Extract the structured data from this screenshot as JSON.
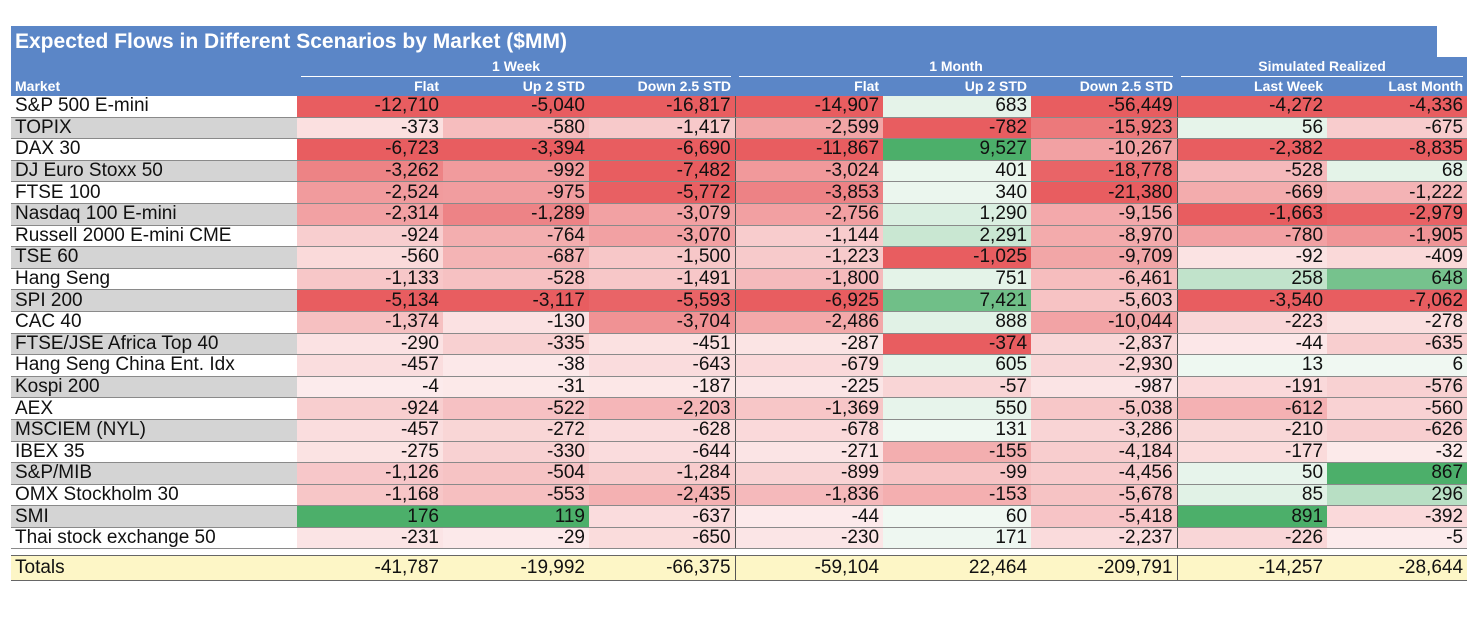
{
  "chart_data": {
    "type": "table",
    "title": "Expected Flows in Different Scenarios by Market ($MM)",
    "column_groups": [
      {
        "label": "1 Week",
        "span": 3
      },
      {
        "label": "1 Month",
        "span": 3
      },
      {
        "label": "Simulated Realized",
        "span": 2
      }
    ],
    "row_header": "Market",
    "columns": [
      "Flat",
      "Up 2 STD",
      "Down 2.5 STD",
      "Flat",
      "Up 2 STD",
      "Down 2.5 STD",
      "Last Week",
      "Last Month"
    ],
    "rows": [
      {
        "market": "S&P 500 E-mini",
        "shaded": false,
        "values": [
          -12710,
          -5040,
          -16817,
          -14907,
          683,
          -56449,
          -4272,
          -4336
        ]
      },
      {
        "market": "TOPIX",
        "shaded": true,
        "values": [
          -373,
          -580,
          -1417,
          -2599,
          -782,
          -15923,
          56,
          -675
        ]
      },
      {
        "market": "DAX 30",
        "shaded": false,
        "values": [
          -6723,
          -3394,
          -6690,
          -11867,
          9527,
          -10267,
          -2382,
          -8835
        ]
      },
      {
        "market": "DJ Euro Stoxx 50",
        "shaded": true,
        "values": [
          -3262,
          -992,
          -7482,
          -3024,
          401,
          -18778,
          -528,
          68
        ]
      },
      {
        "market": "FTSE 100",
        "shaded": false,
        "values": [
          -2524,
          -975,
          -5772,
          -3853,
          340,
          -21380,
          -669,
          -1222
        ]
      },
      {
        "market": "Nasdaq 100 E-mini",
        "shaded": true,
        "values": [
          -2314,
          -1289,
          -3079,
          -2756,
          1290,
          -9156,
          -1663,
          -2979
        ]
      },
      {
        "market": "Russell 2000 E-mini CME",
        "shaded": false,
        "values": [
          -924,
          -764,
          -3070,
          -1144,
          2291,
          -8970,
          -780,
          -1905
        ]
      },
      {
        "market": "TSE 60",
        "shaded": true,
        "values": [
          -560,
          -687,
          -1500,
          -1223,
          -1025,
          -9709,
          -92,
          -409
        ]
      },
      {
        "market": "Hang Seng",
        "shaded": false,
        "values": [
          -1133,
          -528,
          -1491,
          -1800,
          751,
          -6461,
          258,
          648
        ]
      },
      {
        "market": "SPI 200",
        "shaded": true,
        "values": [
          -5134,
          -3117,
          -5593,
          -6925,
          7421,
          -5603,
          -3540,
          -7062
        ]
      },
      {
        "market": "CAC 40",
        "shaded": false,
        "values": [
          -1374,
          -130,
          -3704,
          -2486,
          888,
          -10044,
          -223,
          -278
        ]
      },
      {
        "market": "FTSE/JSE Africa Top 40",
        "shaded": true,
        "values": [
          -290,
          -335,
          -451,
          -287,
          -374,
          -2837,
          -44,
          -635
        ]
      },
      {
        "market": "Hang Seng China Ent. Idx",
        "shaded": false,
        "values": [
          -457,
          -38,
          -643,
          -679,
          605,
          -2930,
          13,
          6
        ]
      },
      {
        "market": "Kospi 200",
        "shaded": true,
        "values": [
          -4,
          -31,
          -187,
          -225,
          -57,
          -987,
          -191,
          -576
        ]
      },
      {
        "market": "AEX",
        "shaded": false,
        "values": [
          -924,
          -522,
          -2203,
          -1369,
          550,
          -5038,
          -612,
          -560
        ]
      },
      {
        "market": "MSCIEM (NYL)",
        "shaded": true,
        "values": [
          -457,
          -272,
          -628,
          -678,
          131,
          -3286,
          -210,
          -626
        ]
      },
      {
        "market": "IBEX 35",
        "shaded": false,
        "values": [
          -275,
          -330,
          -644,
          -271,
          -155,
          -4184,
          -177,
          -32
        ]
      },
      {
        "market": "S&P/MIB",
        "shaded": true,
        "values": [
          -1126,
          -504,
          -1284,
          -899,
          -99,
          -4456,
          50,
          867
        ]
      },
      {
        "market": "OMX Stockholm 30",
        "shaded": false,
        "values": [
          -1168,
          -553,
          -2435,
          -1836,
          -153,
          -5678,
          85,
          296
        ]
      },
      {
        "market": "SMI",
        "shaded": true,
        "values": [
          176,
          119,
          -637,
          -44,
          60,
          -5418,
          891,
          -392
        ]
      },
      {
        "market": "Thai stock exchange 50",
        "shaded": false,
        "values": [
          -231,
          -29,
          -650,
          -230,
          171,
          -2237,
          -226,
          -5
        ]
      }
    ],
    "totals": {
      "label": "Totals",
      "values": [
        -41787,
        -19992,
        -66375,
        -59104,
        22464,
        -209791,
        -14257,
        -28644
      ]
    },
    "colors": {
      "header": "#5b86c7",
      "negative_strong": "#e85d60",
      "positive_strong": "#4caf6a",
      "neutral": "#ffffff",
      "row_shade": "#d4d4d4",
      "totals": "#fdf6c6"
    }
  }
}
